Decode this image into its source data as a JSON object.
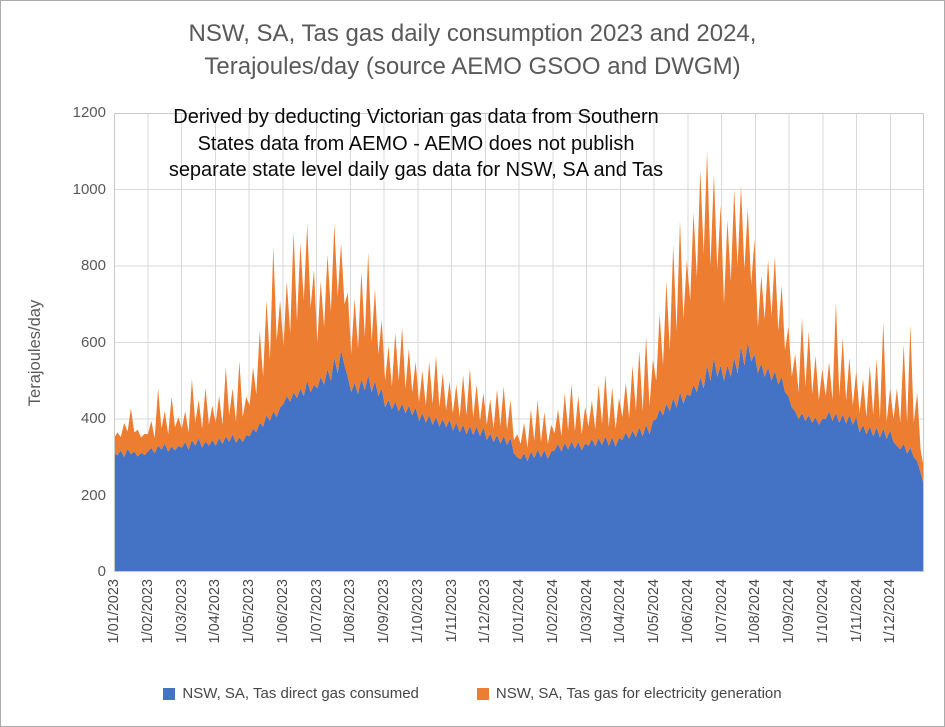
{
  "header": {
    "line1": "NSW, SA, Tas gas daily consumption 2023 and 2024,",
    "line2": "Terajoules/day  (source AEMO GSOO and DWGM)"
  },
  "chart_data": {
    "type": "area",
    "stacked": true,
    "title": "NSW, SA, Tas gas daily consumption 2023 and 2024, Terajoules/day (source AEMO GSOO and DWGM)",
    "ylabel": "Terajoules/day",
    "xlabel": "",
    "ylim": [
      0,
      1200
    ],
    "y_ticks": [
      0,
      200,
      400,
      600,
      800,
      1000,
      1200
    ],
    "grid": true,
    "legend_position": "bottom",
    "annotation": "Derived by deducting Victorian gas data from Southern\nStates data from AEMO - AEMO does not publish\nseparate state level daily gas data for NSW, SA and Tas",
    "x_tick_labels": [
      "1/01/2023",
      "1/02/2023",
      "1/03/2023",
      "1/04/2023",
      "1/05/2023",
      "1/06/2023",
      "1/07/2023",
      "1/08/2023",
      "1/09/2023",
      "1/10/2023",
      "1/11/2023",
      "1/12/2023",
      "1/01/2024",
      "1/02/2024",
      "1/03/2024",
      "1/04/2024",
      "1/05/2024",
      "1/06/2024",
      "1/07/2024",
      "1/08/2024",
      "1/09/2024",
      "1/10/2024",
      "1/11/2024",
      "1/12/2024"
    ],
    "sample_interval_days": 3,
    "points_per_month": 10,
    "series": [
      {
        "name": "NSW, SA, Tas direct gas consumed",
        "color": "#4472C4",
        "values": [
          310,
          305,
          318,
          300,
          322,
          308,
          315,
          302,
          312,
          306,
          315,
          325,
          310,
          330,
          320,
          335,
          315,
          328,
          318,
          330,
          325,
          340,
          320,
          345,
          330,
          350,
          325,
          342,
          330,
          345,
          330,
          350,
          335,
          355,
          340,
          360,
          338,
          352,
          340,
          358,
          355,
          375,
          365,
          390,
          380,
          410,
          395,
          420,
          405,
          430,
          440,
          460,
          445,
          470,
          455,
          480,
          460,
          500,
          470,
          490,
          480,
          510,
          490,
          530,
          500,
          560,
          520,
          580,
          540,
          510,
          470,
          495,
          465,
          505,
          475,
          515,
          470,
          500,
          460,
          480,
          430,
          450,
          425,
          445,
          420,
          440,
          415,
          435,
          410,
          430,
          395,
          415,
          390,
          410,
          385,
          405,
          380,
          400,
          378,
          398,
          370,
          390,
          365,
          385,
          360,
          382,
          358,
          380,
          355,
          378,
          345,
          362,
          340,
          358,
          336,
          355,
          332,
          350,
          310,
          300,
          295,
          310,
          290,
          315,
          298,
          320,
          300,
          318,
          296,
          315,
          318,
          335,
          315,
          338,
          320,
          342,
          322,
          340,
          318,
          336,
          330,
          348,
          328,
          350,
          332,
          355,
          330,
          352,
          328,
          350,
          345,
          365,
          348,
          370,
          352,
          378,
          355,
          385,
          360,
          395,
          400,
          425,
          410,
          440,
          420,
          455,
          430,
          470,
          440,
          465,
          460,
          490,
          470,
          510,
          480,
          540,
          500,
          560,
          510,
          540,
          500,
          540,
          510,
          560,
          520,
          590,
          540,
          600,
          550,
          570,
          520,
          545,
          510,
          535,
          500,
          525,
          490,
          510,
          470,
          460,
          430,
          420,
          400,
          415,
          395,
          410,
          390,
          405,
          385,
          400,
          400,
          420,
          395,
          415,
          390,
          412,
          388,
          410,
          385,
          405,
          365,
          385,
          360,
          380,
          355,
          378,
          352,
          375,
          348,
          370,
          340,
          330,
          320,
          335,
          310,
          325,
          300,
          290,
          260,
          225
        ]
      },
      {
        "name": "NSW, SA, Tas gas for electricity generation",
        "color": "#ED7D31",
        "values": [
          40,
          60,
          35,
          90,
          45,
          120,
          50,
          70,
          40,
          55,
          45,
          70,
          40,
          150,
          55,
          85,
          45,
          130,
          60,
          75,
          50,
          80,
          45,
          160,
          60,
          100,
          50,
          140,
          55,
          90,
          60,
          110,
          50,
          180,
          70,
          120,
          55,
          200,
          65,
          100,
          80,
          160,
          100,
          240,
          130,
          300,
          160,
          430,
          200,
          280,
          150,
          300,
          180,
          420,
          200,
          380,
          250,
          410,
          220,
          300,
          120,
          250,
          150,
          300,
          180,
          350,
          200,
          280,
          160,
          220,
          100,
          220,
          120,
          280,
          140,
          320,
          130,
          240,
          110,
          180,
          70,
          140,
          60,
          180,
          80,
          200,
          65,
          150,
          60,
          120,
          50,
          110,
          45,
          140,
          55,
          160,
          50,
          120,
          45,
          100,
          45,
          100,
          40,
          130,
          50,
          150,
          45,
          110,
          40,
          90,
          40,
          90,
          35,
          120,
          45,
          130,
          40,
          100,
          35,
          60,
          40,
          80,
          35,
          110,
          45,
          130,
          40,
          100,
          38,
          70,
          45,
          90,
          40,
          130,
          50,
          150,
          45,
          120,
          42,
          95,
          50,
          100,
          45,
          140,
          55,
          160,
          48,
          130,
          45,
          105,
          60,
          130,
          55,
          170,
          70,
          200,
          65,
          230,
          75,
          160,
          100,
          250,
          130,
          320,
          160,
          400,
          200,
          450,
          220,
          350,
          250,
          450,
          300,
          540,
          350,
          560,
          300,
          480,
          280,
          420,
          200,
          380,
          250,
          440,
          280,
          420,
          250,
          350,
          200,
          300,
          120,
          230,
          150,
          280,
          170,
          300,
          140,
          240,
          110,
          180,
          80,
          150,
          70,
          250,
          90,
          220,
          75,
          160,
          65,
          130,
          60,
          130,
          55,
          290,
          70,
          200,
          60,
          150,
          50,
          120,
          50,
          120,
          45,
          160,
          55,
          180,
          50,
          280,
          45,
          110,
          60,
          150,
          70,
          260,
          80,
          320,
          90,
          180,
          60,
          45
        ]
      }
    ],
    "colors": {
      "direct_gas": "#4472C4",
      "electricity_gas": "#ED7D31",
      "gridline": "#D9D9D9",
      "plot_border": "#C9C9C9",
      "title_text": "#595959",
      "annotation_text": "#0a0a0a"
    }
  }
}
